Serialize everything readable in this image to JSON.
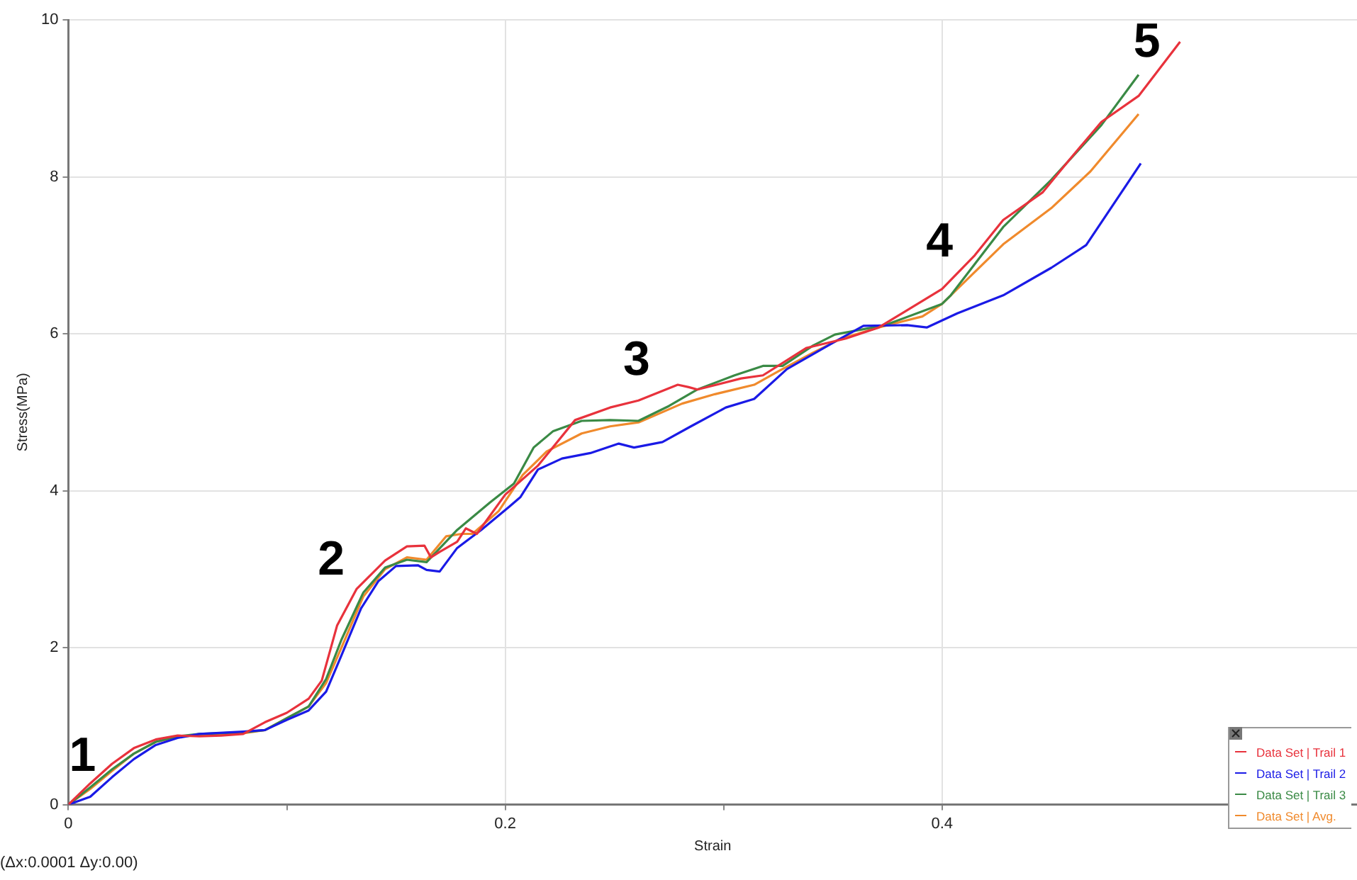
{
  "chart_data": {
    "type": "line",
    "xlabel": "Strain",
    "ylabel": "Stress(MPa)",
    "xlim": [
      0,
      0.59
    ],
    "ylim": [
      0,
      10
    ],
    "xticks": [
      0,
      {
        "value": 0.1,
        "label": null
      },
      0.2,
      {
        "value": 0.3,
        "label": null
      },
      0.4
    ],
    "yticks": [
      0,
      2,
      4,
      6,
      8,
      10
    ],
    "grid": true,
    "legend": "bottom right",
    "marker": "none",
    "line_style": "solid",
    "annotations": [
      "1",
      "2",
      "3",
      "4",
      "5",
      "(Δx:0.0001 Δy:0.00)"
    ],
    "series": [
      {
        "name": "Data Set | Trail 1",
        "color": "#e8323c",
        "x": [
          0,
          0.01,
          0.02,
          0.03,
          0.04,
          0.05,
          0.06,
          0.07,
          0.08,
          0.09,
          0.1,
          0.11,
          0.116,
          0.123,
          0.132,
          0.145,
          0.155,
          0.163,
          0.166,
          0.17,
          0.178,
          0.182,
          0.187,
          0.2,
          0.215,
          0.232,
          0.248,
          0.261,
          0.279,
          0.284,
          0.288,
          0.308,
          0.318,
          0.338,
          0.356,
          0.371,
          0.4,
          0.415,
          0.428,
          0.446,
          0.459,
          0.473,
          0.49,
          0.509
        ],
        "values": [
          0,
          0.27,
          0.52,
          0.72,
          0.83,
          0.88,
          0.87,
          0.88,
          0.9,
          1.05,
          1.17,
          1.35,
          1.58,
          2.28,
          2.75,
          3.11,
          3.29,
          3.3,
          3.15,
          3.22,
          3.35,
          3.52,
          3.45,
          3.95,
          4.32,
          4.9,
          5.06,
          5.15,
          5.35,
          5.32,
          5.29,
          5.43,
          5.47,
          5.82,
          5.94,
          6.08,
          6.57,
          7.0,
          7.45,
          7.8,
          8.24,
          8.7,
          9.03,
          9.72
        ]
      },
      {
        "name": "Data Set | Trail 2",
        "color": "#1a1ae6",
        "x": [
          0,
          0.01,
          0.02,
          0.03,
          0.04,
          0.05,
          0.06,
          0.08,
          0.09,
          0.1,
          0.11,
          0.118,
          0.125,
          0.134,
          0.142,
          0.15,
          0.16,
          0.164,
          0.17,
          0.178,
          0.189,
          0.202,
          0.207,
          0.215,
          0.226,
          0.239,
          0.252,
          0.259,
          0.272,
          0.285,
          0.301,
          0.314,
          0.329,
          0.351,
          0.364,
          0.384,
          0.393,
          0.407,
          0.428,
          0.45,
          0.466,
          0.491
        ],
        "values": [
          0,
          0.1,
          0.35,
          0.58,
          0.76,
          0.85,
          0.9,
          0.93,
          0.95,
          1.08,
          1.2,
          1.44,
          1.9,
          2.5,
          2.85,
          3.04,
          3.05,
          2.99,
          2.97,
          3.27,
          3.5,
          3.8,
          3.92,
          4.27,
          4.41,
          4.48,
          4.6,
          4.55,
          4.62,
          4.82,
          5.06,
          5.17,
          5.55,
          5.9,
          6.1,
          6.11,
          6.08,
          6.26,
          6.49,
          6.84,
          7.13,
          8.17
        ]
      },
      {
        "name": "Data Set | Trail 3",
        "color": "#3a8a45",
        "x": [
          0,
          0.01,
          0.02,
          0.03,
          0.04,
          0.05,
          0.06,
          0.08,
          0.09,
          0.1,
          0.11,
          0.118,
          0.125,
          0.135,
          0.145,
          0.155,
          0.164,
          0.178,
          0.193,
          0.204,
          0.213,
          0.222,
          0.235,
          0.248,
          0.261,
          0.275,
          0.288,
          0.305,
          0.318,
          0.327,
          0.341,
          0.351,
          0.374,
          0.4,
          0.404,
          0.428,
          0.45,
          0.473,
          0.49
        ],
        "values": [
          0,
          0.22,
          0.45,
          0.65,
          0.8,
          0.87,
          0.9,
          0.92,
          0.95,
          1.1,
          1.25,
          1.6,
          2.1,
          2.7,
          3.02,
          3.12,
          3.09,
          3.5,
          3.85,
          4.09,
          4.55,
          4.76,
          4.89,
          4.9,
          4.89,
          5.08,
          5.29,
          5.47,
          5.59,
          5.59,
          5.85,
          5.99,
          6.11,
          6.38,
          6.49,
          7.36,
          7.96,
          8.66,
          9.3
        ]
      },
      {
        "name": "Data Set | Avg.",
        "color": "#f08a2c",
        "x": [
          0,
          0.01,
          0.02,
          0.03,
          0.04,
          0.05,
          0.06,
          0.08,
          0.09,
          0.1,
          0.11,
          0.118,
          0.125,
          0.135,
          0.145,
          0.155,
          0.164,
          0.173,
          0.18,
          0.185,
          0.197,
          0.208,
          0.219,
          0.235,
          0.248,
          0.261,
          0.281,
          0.296,
          0.314,
          0.325,
          0.341,
          0.354,
          0.371,
          0.391,
          0.4,
          0.428,
          0.45,
          0.468,
          0.49
        ],
        "values": [
          0,
          0.2,
          0.43,
          0.65,
          0.8,
          0.86,
          0.89,
          0.91,
          0.95,
          1.1,
          1.25,
          1.55,
          2.0,
          2.65,
          3.0,
          3.15,
          3.12,
          3.42,
          3.45,
          3.45,
          3.74,
          4.2,
          4.5,
          4.73,
          4.82,
          4.87,
          5.11,
          5.23,
          5.35,
          5.52,
          5.76,
          5.94,
          6.08,
          6.22,
          6.38,
          7.14,
          7.6,
          8.07,
          8.8
        ]
      }
    ]
  }
}
